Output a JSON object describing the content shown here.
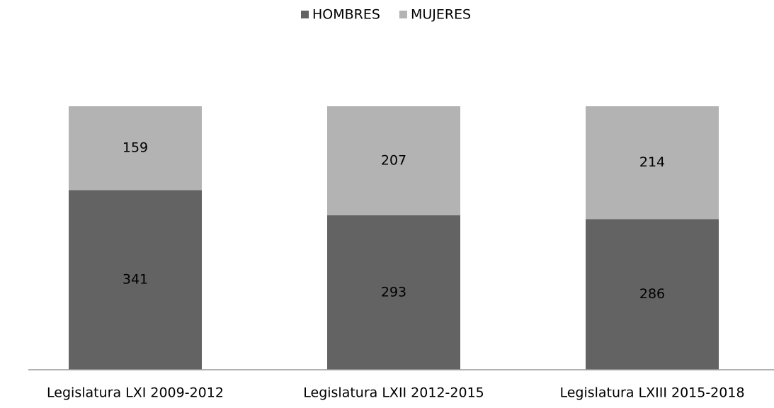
{
  "chart_data": {
    "type": "stacked_bar",
    "categories": [
      "Legislatura LXI 2009-2012",
      "Legislatura LXII 2012-2015",
      "Legislatura LXIII 2015-2018"
    ],
    "series": [
      {
        "name": "HOMBRES",
        "color": "#636363",
        "values": [
          341,
          293,
          286
        ]
      },
      {
        "name": "MUJERES",
        "color": "#b3b3b3",
        "values": [
          159,
          207,
          214
        ]
      }
    ],
    "ylim": [
      0,
      500
    ],
    "legend": "top"
  }
}
